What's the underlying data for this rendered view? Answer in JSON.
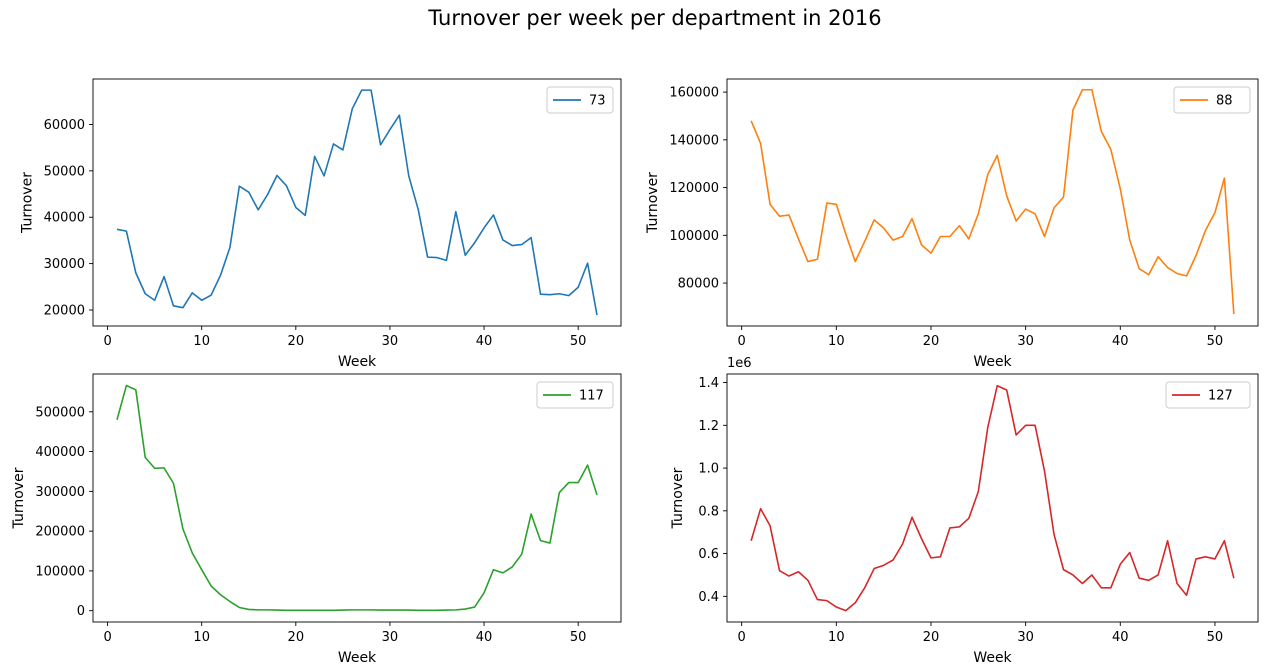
{
  "figure": {
    "title": "Turnover per week per department in 2016"
  },
  "chart_data": [
    {
      "type": "line",
      "xlabel": "Week",
      "ylabel": "Turnover",
      "xlim": [
        -1.55,
        54.55
      ],
      "ylim": [
        16550,
        69800
      ],
      "x_ticks": [
        0,
        10,
        20,
        30,
        40,
        50
      ],
      "y_ticks": [
        20000,
        30000,
        40000,
        50000,
        60000
      ],
      "y_tick_labels": [
        "20000",
        "30000",
        "40000",
        "50000",
        "60000"
      ],
      "offset_label": "",
      "legend_position": "upper right",
      "series": [
        {
          "name": "73",
          "color": "#1f77b4",
          "x": [
            1,
            2,
            3,
            4,
            5,
            6,
            7,
            8,
            9,
            10,
            11,
            12,
            13,
            14,
            15,
            16,
            17,
            18,
            19,
            20,
            21,
            22,
            23,
            24,
            25,
            26,
            27,
            28,
            29,
            30,
            31,
            32,
            33,
            34,
            35,
            36,
            37,
            38,
            39,
            40,
            41,
            42,
            43,
            44,
            45,
            46,
            47,
            48,
            49,
            50,
            51,
            52
          ],
          "values": [
            37400,
            37000,
            28000,
            23500,
            22100,
            27200,
            20900,
            20500,
            23700,
            22100,
            23200,
            27500,
            33500,
            46700,
            45400,
            41600,
            44900,
            49000,
            46800,
            42100,
            40400,
            53100,
            48900,
            55800,
            54500,
            63400,
            67400,
            67400,
            55600,
            58900,
            62000,
            48900,
            41700,
            31400,
            31300,
            30700,
            41200,
            31800,
            34500,
            37700,
            40500,
            35100,
            33900,
            34100,
            35600,
            23400,
            23300,
            23500,
            23100,
            24900,
            30100,
            18900
          ]
        }
      ]
    },
    {
      "type": "line",
      "xlabel": "Week",
      "ylabel": "Turnover",
      "xlim": [
        -1.55,
        54.55
      ],
      "ylim": [
        62000,
        165500
      ],
      "x_ticks": [
        0,
        10,
        20,
        30,
        40,
        50
      ],
      "y_ticks": [
        80000,
        100000,
        120000,
        140000,
        160000
      ],
      "y_tick_labels": [
        "80000",
        "100000",
        "120000",
        "140000",
        "160000"
      ],
      "offset_label": "",
      "legend_position": "upper right",
      "series": [
        {
          "name": "88",
          "color": "#ff7f0e",
          "x": [
            1,
            2,
            3,
            4,
            5,
            6,
            7,
            8,
            9,
            10,
            11,
            12,
            13,
            14,
            15,
            16,
            17,
            18,
            19,
            20,
            21,
            22,
            23,
            24,
            25,
            26,
            27,
            28,
            29,
            30,
            31,
            32,
            33,
            34,
            35,
            36,
            37,
            38,
            39,
            40,
            41,
            42,
            43,
            44,
            45,
            46,
            47,
            48,
            49,
            50,
            51,
            52
          ],
          "values": [
            148000,
            138500,
            113000,
            108000,
            108500,
            98500,
            89000,
            90000,
            113500,
            113000,
            100500,
            89000,
            97500,
            106500,
            103000,
            98000,
            99500,
            107000,
            96000,
            92500,
            99500,
            99500,
            104000,
            98500,
            109000,
            125500,
            133500,
            116500,
            106000,
            111000,
            109000,
            99500,
            111500,
            116000,
            152500,
            161000,
            161000,
            143500,
            136000,
            119500,
            98000,
            86000,
            83500,
            91000,
            86500,
            84000,
            83000,
            91500,
            102000,
            109500,
            124000,
            67000
          ]
        }
      ]
    },
    {
      "type": "line",
      "xlabel": "Week",
      "ylabel": "Turnover",
      "xlim": [
        -1.55,
        54.55
      ],
      "ylim": [
        -28500,
        595000
      ],
      "x_ticks": [
        0,
        10,
        20,
        30,
        40,
        50
      ],
      "y_ticks": [
        0,
        100000,
        200000,
        300000,
        400000,
        500000
      ],
      "y_tick_labels": [
        "0",
        "100000",
        "200000",
        "300000",
        "400000",
        "500000"
      ],
      "offset_label": "",
      "legend_position": "upper right",
      "series": [
        {
          "name": "117",
          "color": "#2ca02c",
          "x": [
            1,
            2,
            3,
            4,
            5,
            6,
            7,
            8,
            9,
            10,
            11,
            12,
            13,
            14,
            15,
            16,
            17,
            18,
            19,
            20,
            21,
            22,
            23,
            24,
            25,
            26,
            27,
            28,
            29,
            30,
            31,
            32,
            33,
            34,
            35,
            36,
            37,
            38,
            39,
            40,
            41,
            42,
            43,
            44,
            45,
            46,
            47,
            48,
            49,
            50,
            51,
            52
          ],
          "values": [
            480000,
            566000,
            555000,
            385000,
            358000,
            359000,
            320000,
            206000,
            145000,
            103000,
            62000,
            40000,
            23000,
            8000,
            3000,
            2000,
            2000,
            1500,
            1000,
            1000,
            1000,
            1000,
            1000,
            1000,
            1500,
            2000,
            2000,
            2000,
            1500,
            1500,
            1500,
            1500,
            1000,
            1000,
            1000,
            1500,
            2000,
            4000,
            9000,
            45000,
            103000,
            95000,
            110000,
            142000,
            243000,
            176000,
            170000,
            297000,
            322000,
            322000,
            366000,
            291000
          ]
        }
      ]
    },
    {
      "type": "line",
      "xlabel": "Week",
      "ylabel": "Turnover",
      "xlim": [
        -1.55,
        54.55
      ],
      "ylim": [
        280000,
        1440000
      ],
      "x_ticks": [
        0,
        10,
        20,
        30,
        40,
        50
      ],
      "y_ticks": [
        400000,
        600000,
        800000,
        1000000,
        1200000,
        1400000
      ],
      "y_tick_labels": [
        "0.4",
        "0.6",
        "0.8",
        "1.0",
        "1.2",
        "1.4"
      ],
      "offset_label": "1e6",
      "legend_position": "upper right",
      "series": [
        {
          "name": "127",
          "color": "#d62728",
          "x": [
            1,
            2,
            3,
            4,
            5,
            6,
            7,
            8,
            9,
            10,
            11,
            12,
            13,
            14,
            15,
            16,
            17,
            18,
            19,
            20,
            21,
            22,
            23,
            24,
            25,
            26,
            27,
            28,
            29,
            30,
            31,
            32,
            33,
            34,
            35,
            36,
            37,
            38,
            39,
            40,
            41,
            42,
            43,
            44,
            45,
            46,
            47,
            48,
            49,
            50,
            51,
            52
          ],
          "values": [
            660000,
            810000,
            730000,
            520000,
            495000,
            515000,
            475000,
            385000,
            380000,
            350000,
            333000,
            370000,
            440000,
            530000,
            545000,
            570000,
            645000,
            770000,
            670000,
            580000,
            585000,
            720000,
            725000,
            765000,
            890000,
            1190000,
            1385000,
            1365000,
            1155000,
            1200000,
            1200000,
            985000,
            690000,
            525000,
            500000,
            460000,
            500000,
            440000,
            440000,
            550000,
            605000,
            485000,
            475000,
            500000,
            660000,
            460000,
            405000,
            575000,
            585000,
            575000,
            660000,
            485000
          ]
        }
      ]
    }
  ]
}
